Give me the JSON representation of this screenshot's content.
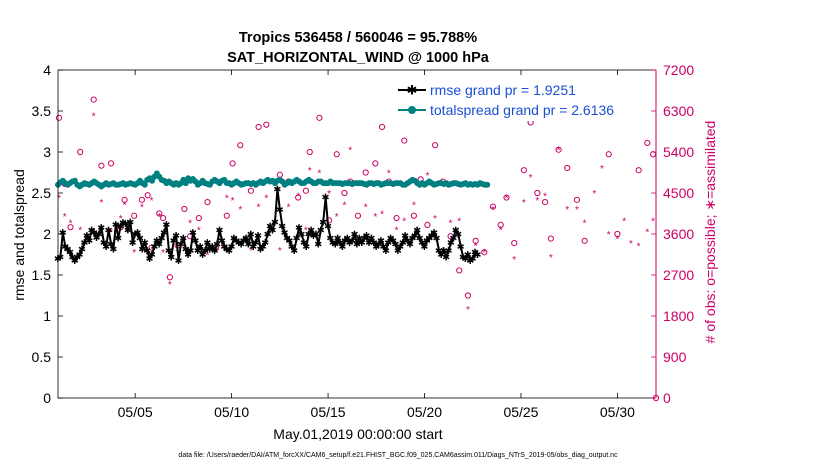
{
  "chart_data": {
    "type": "line",
    "title": "Tropics 536458 / 560046 = 95.788%",
    "subtitle": "SAT_HORIZONTAL_WIND @ 1000 hPa",
    "xlabel": "May.01,2019 00:00:00 start",
    "ylabel_left": "rmse and totalspread",
    "ylabel_right": "# of obs: o=possible; ∗=assimilated",
    "footnote": "data file: /Users/raeder/DAI/ATM_forcXX/CAM6_setup/f.e21.FHIST_BGC.f09_025.CAM6assim.011/Diags_NTrS_2019-05/obs_diag_output.nc",
    "xlim": [
      1,
      32
    ],
    "ylim_left": [
      0,
      4
    ],
    "ylim_right": [
      0,
      7200
    ],
    "x_ticks": [
      5,
      10,
      15,
      20,
      25,
      30
    ],
    "x_tick_labels": [
      "05/05",
      "05/10",
      "05/15",
      "05/20",
      "05/25",
      "05/30"
    ],
    "y_left_ticks": [
      "0",
      "0.5",
      "1",
      "1.5",
      "2",
      "2.5",
      "3",
      "3.5",
      "4"
    ],
    "y_right_ticks": [
      "0",
      "900",
      "1800",
      "2700",
      "3600",
      "4500",
      "5400",
      "6300",
      "7200"
    ],
    "legend_position": "top-right",
    "grid": false,
    "x_step_days": 0.125,
    "series": [
      {
        "name": "rmse grand pr = 1.9251",
        "axis": "left",
        "color": "#000000",
        "marker": "star",
        "values": [
          1.7,
          1.72,
          2.02,
          1.85,
          1.82,
          1.78,
          1.72,
          1.68,
          1.72,
          1.75,
          1.82,
          1.9,
          1.98,
          1.92,
          2.05,
          2.02,
          1.96,
          2.0,
          2.08,
          1.9,
          1.85,
          2.05,
          1.88,
          1.82,
          2.12,
          1.95,
          2.1,
          2.14,
          2.13,
          2.05,
          2.15,
          1.9,
          2.0,
          2.02,
          1.95,
          1.82,
          1.9,
          1.8,
          1.7,
          1.75,
          1.85,
          1.92,
          1.88,
          1.95,
          2.02,
          2.12,
          1.8,
          1.72,
          1.92,
          1.98,
          1.68,
          1.88,
          1.95,
          1.82,
          1.75,
          1.8,
          2.02,
          1.92,
          1.8,
          1.85,
          1.75,
          1.8,
          1.9,
          1.82,
          1.85,
          1.8,
          1.88,
          2.05,
          1.92,
          1.85,
          1.82,
          1.8,
          1.85,
          1.95,
          1.92,
          1.9,
          1.88,
          1.92,
          1.95,
          1.88,
          2.0,
          1.85,
          1.9,
          1.98,
          1.82,
          1.85,
          1.9,
          2.0,
          2.1,
          2.05,
          2.15,
          2.55,
          2.3,
          2.1,
          2.02,
          1.95,
          1.92,
          1.85,
          1.8,
          1.95,
          2.08,
          2.0,
          1.9,
          1.85,
          2.0,
          2.05,
          1.98,
          2.0,
          1.88,
          2.05,
          2.15,
          2.45,
          2.1,
          1.95,
          1.9,
          1.88,
          1.95,
          1.9,
          1.85,
          1.92,
          1.95,
          1.9,
          1.92,
          2.0,
          1.88,
          1.95,
          1.9,
          1.95,
          1.98,
          1.9,
          1.95,
          1.9,
          1.85,
          1.88,
          1.92,
          1.85,
          1.8,
          1.9,
          1.95,
          1.92,
          1.88,
          1.8,
          1.85,
          1.9,
          1.98,
          1.92,
          1.88,
          1.95,
          1.98,
          2.05,
          1.95,
          1.9,
          1.85,
          1.92,
          1.95,
          1.98,
          2.02,
          1.95,
          1.8,
          1.75,
          1.8,
          1.72,
          1.8,
          1.9,
          1.95,
          2.05,
          2.0,
          1.85,
          1.72,
          1.7,
          1.75,
          1.68,
          1.7,
          1.78,
          1.75
        ]
      },
      {
        "name": "totalspread grand pr = 2.6136",
        "axis": "left",
        "color": "#008080",
        "marker": "circle",
        "values": [
          2.6,
          2.63,
          2.65,
          2.62,
          2.6,
          2.62,
          2.64,
          2.65,
          2.6,
          2.58,
          2.6,
          2.62,
          2.61,
          2.6,
          2.62,
          2.64,
          2.62,
          2.6,
          2.58,
          2.6,
          2.62,
          2.6,
          2.61,
          2.62,
          2.6,
          2.6,
          2.61,
          2.62,
          2.6,
          2.61,
          2.62,
          2.61,
          2.6,
          2.62,
          2.65,
          2.62,
          2.6,
          2.66,
          2.68,
          2.65,
          2.7,
          2.74,
          2.7,
          2.66,
          2.65,
          2.62,
          2.64,
          2.62,
          2.6,
          2.62,
          2.6,
          2.62,
          2.66,
          2.62,
          2.68,
          2.65,
          2.67,
          2.64,
          2.6,
          2.62,
          2.65,
          2.62,
          2.61,
          2.6,
          2.64,
          2.66,
          2.64,
          2.62,
          2.65,
          2.66,
          2.62,
          2.62,
          2.6,
          2.62,
          2.64,
          2.62,
          2.6,
          2.61,
          2.62,
          2.62,
          2.61,
          2.62,
          2.6,
          2.62,
          2.64,
          2.62,
          2.64,
          2.66,
          2.64,
          2.65,
          2.62,
          2.65,
          2.66,
          2.64,
          2.6,
          2.62,
          2.64,
          2.62,
          2.64,
          2.66,
          2.64,
          2.62,
          2.62,
          2.64,
          2.66,
          2.64,
          2.62,
          2.62,
          2.64,
          2.64,
          2.62,
          2.62,
          2.62,
          2.64,
          2.62,
          2.62,
          2.62,
          2.62,
          2.61,
          2.62,
          2.62,
          2.62,
          2.61,
          2.62,
          2.62,
          2.62,
          2.62,
          2.61,
          2.6,
          2.62,
          2.62,
          2.61,
          2.62,
          2.62,
          2.6,
          2.61,
          2.62,
          2.62,
          2.62,
          2.61,
          2.62,
          2.62,
          2.62,
          2.6,
          2.6,
          2.62,
          2.64,
          2.66,
          2.65,
          2.62,
          2.6,
          2.62,
          2.6,
          2.62,
          2.64,
          2.62,
          2.6,
          2.61,
          2.62,
          2.62,
          2.61,
          2.62,
          2.6,
          2.61,
          2.62,
          2.62,
          2.61,
          2.6,
          2.61,
          2.62,
          2.6,
          2.61,
          2.6,
          2.61,
          2.6,
          2.62,
          2.61,
          2.6,
          2.6
        ]
      }
    ],
    "obs_counts": {
      "axis": "right",
      "color": "#cc0066",
      "possible": [
        [
          1.05,
          6150
        ],
        [
          1.35,
          4700
        ],
        [
          1.65,
          3750
        ],
        [
          2.15,
          5400
        ],
        [
          2.85,
          6550
        ],
        [
          3.25,
          5100
        ],
        [
          3.75,
          5150
        ],
        [
          4.25,
          3750
        ],
        [
          4.45,
          4350
        ],
        [
          4.95,
          4000
        ],
        [
          5.35,
          4350
        ],
        [
          5.65,
          4450
        ],
        [
          5.85,
          3300
        ],
        [
          6.25,
          4050
        ],
        [
          6.45,
          3950
        ],
        [
          6.8,
          2650
        ],
        [
          7.2,
          3350
        ],
        [
          7.55,
          4150
        ],
        [
          7.85,
          3550
        ],
        [
          8.3,
          3950
        ],
        [
          8.75,
          4300
        ],
        [
          9.2,
          3300
        ],
        [
          9.75,
          4000
        ],
        [
          10.05,
          5150
        ],
        [
          10.45,
          5550
        ],
        [
          11.0,
          4550
        ],
        [
          11.4,
          5950
        ],
        [
          11.8,
          6000
        ],
        [
          12.5,
          4900
        ],
        [
          12.95,
          4750
        ],
        [
          13.45,
          4400
        ],
        [
          13.85,
          4550
        ],
        [
          14.05,
          5400
        ],
        [
          14.55,
          6150
        ],
        [
          15.05,
          3900
        ],
        [
          15.45,
          5350
        ],
        [
          15.85,
          4500
        ],
        [
          16.15,
          4750
        ],
        [
          16.55,
          4000
        ],
        [
          16.95,
          4950
        ],
        [
          17.45,
          5150
        ],
        [
          17.8,
          5950
        ],
        [
          18.15,
          4750
        ],
        [
          18.55,
          3950
        ],
        [
          18.95,
          5650
        ],
        [
          19.45,
          4000
        ],
        [
          19.8,
          4800
        ],
        [
          20.15,
          3800
        ],
        [
          20.55,
          5550
        ],
        [
          20.95,
          4750
        ],
        [
          21.35,
          3550
        ],
        [
          21.8,
          2800
        ],
        [
          22.25,
          2250
        ],
        [
          22.65,
          3450
        ],
        [
          23.1,
          3200
        ],
        [
          23.55,
          4200
        ],
        [
          23.95,
          3800
        ],
        [
          24.25,
          4400
        ],
        [
          24.65,
          3400
        ],
        [
          25.15,
          5000
        ],
        [
          25.5,
          6050
        ],
        [
          25.85,
          4500
        ],
        [
          26.25,
          4300
        ],
        [
          26.55,
          3500
        ],
        [
          26.95,
          5450
        ],
        [
          27.4,
          5050
        ],
        [
          27.9,
          4350
        ],
        [
          28.3,
          3450
        ],
        [
          28.8,
          6250
        ],
        [
          29.2,
          6500
        ],
        [
          29.55,
          5350
        ],
        [
          30.0,
          3600
        ],
        [
          30.35,
          6600
        ],
        [
          30.7,
          6750
        ],
        [
          31.1,
          5000
        ],
        [
          31.55,
          5600
        ],
        [
          31.85,
          5350
        ],
        [
          32.0,
          0
        ]
      ],
      "assimilated": [
        [
          1.05,
          4400
        ],
        [
          1.35,
          4000
        ],
        [
          1.65,
          3850
        ],
        [
          2.15,
          3700
        ],
        [
          2.85,
          6200
        ],
        [
          3.25,
          4300
        ],
        [
          3.75,
          3650
        ],
        [
          4.25,
          3950
        ],
        [
          4.45,
          4250
        ],
        [
          4.95,
          3200
        ],
        [
          5.35,
          4200
        ],
        [
          5.65,
          3150
        ],
        [
          5.85,
          4350
        ],
        [
          6.25,
          4000
        ],
        [
          6.45,
          3200
        ],
        [
          6.8,
          2500
        ],
        [
          7.2,
          3200
        ],
        [
          7.55,
          3450
        ],
        [
          7.85,
          3850
        ],
        [
          8.3,
          3700
        ],
        [
          8.75,
          3150
        ],
        [
          9.2,
          3200
        ],
        [
          9.75,
          4400
        ],
        [
          10.05,
          4350
        ],
        [
          10.45,
          4150
        ],
        [
          11.0,
          3250
        ],
        [
          11.4,
          4200
        ],
        [
          11.8,
          4400
        ],
        [
          12.5,
          3250
        ],
        [
          12.95,
          4200
        ],
        [
          13.45,
          4450
        ],
        [
          13.85,
          3700
        ],
        [
          14.05,
          5000
        ],
        [
          14.55,
          4950
        ],
        [
          15.05,
          4500
        ],
        [
          15.45,
          4000
        ],
        [
          15.85,
          4250
        ],
        [
          16.15,
          5450
        ],
        [
          16.55,
          3450
        ],
        [
          16.95,
          4200
        ],
        [
          17.45,
          4000
        ],
        [
          17.8,
          4050
        ],
        [
          18.15,
          4950
        ],
        [
          18.55,
          3700
        ],
        [
          18.95,
          3900
        ],
        [
          19.45,
          4250
        ],
        [
          19.8,
          4650
        ],
        [
          20.15,
          4900
        ],
        [
          20.55,
          3950
        ],
        [
          20.95,
          3250
        ],
        [
          21.35,
          3850
        ],
        [
          21.8,
          3900
        ],
        [
          22.25,
          1950
        ],
        [
          22.65,
          3350
        ],
        [
          23.1,
          3200
        ],
        [
          23.55,
          4150
        ],
        [
          23.95,
          3700
        ],
        [
          24.25,
          4400
        ],
        [
          24.65,
          3050
        ],
        [
          25.15,
          4300
        ],
        [
          25.5,
          4850
        ],
        [
          25.85,
          4350
        ],
        [
          26.25,
          4450
        ],
        [
          26.55,
          3100
        ],
        [
          26.95,
          5450
        ],
        [
          27.4,
          4150
        ],
        [
          27.9,
          4150
        ],
        [
          28.3,
          3850
        ],
        [
          28.8,
          4500
        ],
        [
          29.2,
          5050
        ],
        [
          29.55,
          3600
        ],
        [
          30.0,
          3500
        ],
        [
          30.35,
          3900
        ],
        [
          30.7,
          3400
        ],
        [
          31.1,
          3350
        ],
        [
          31.55,
          3650
        ],
        [
          31.85,
          3900
        ]
      ]
    }
  }
}
